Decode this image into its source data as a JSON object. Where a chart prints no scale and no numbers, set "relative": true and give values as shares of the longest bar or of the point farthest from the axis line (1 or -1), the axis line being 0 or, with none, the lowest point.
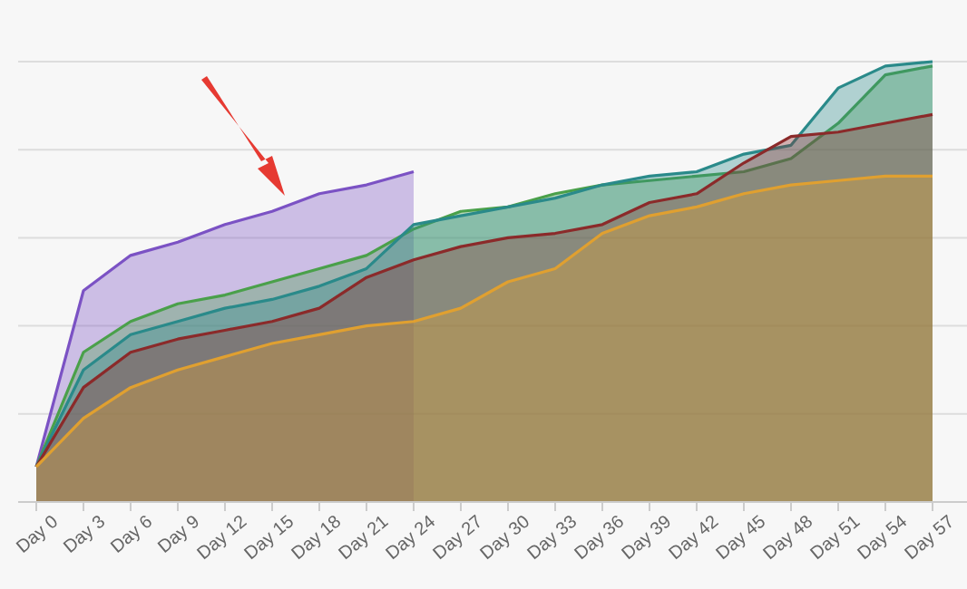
{
  "chart_data": {
    "type": "area",
    "relative": true,
    "grid": true,
    "categories": [
      "Day 0",
      "Day 3",
      "Day 6",
      "Day 9",
      "Day 12",
      "Day 15",
      "Day 18",
      "Day 21",
      "Day 24",
      "Day 27",
      "Day 30",
      "Day 33",
      "Day 36",
      "Day 39",
      "Day 42",
      "Day 45",
      "Day 48",
      "Day 51",
      "Day 54",
      "Day 57"
    ],
    "series": [
      {
        "color": "#7b52c4",
        "values": [
          0.08,
          0.48,
          0.56,
          0.59,
          0.63,
          0.66,
          0.7,
          0.72,
          0.75,
          null,
          null,
          null,
          null,
          null,
          null,
          null,
          null,
          null,
          null,
          null
        ]
      },
      {
        "color": "#4aa04a",
        "values": [
          0.08,
          0.34,
          0.41,
          0.45,
          0.47,
          0.5,
          0.53,
          0.56,
          0.62,
          0.66,
          0.67,
          0.7,
          0.72,
          0.73,
          0.74,
          0.75,
          0.78,
          0.86,
          0.97,
          0.99
        ]
      },
      {
        "color": "#2a8a8a",
        "values": [
          0.08,
          0.3,
          0.38,
          0.41,
          0.44,
          0.46,
          0.49,
          0.53,
          0.63,
          0.65,
          0.67,
          0.69,
          0.72,
          0.74,
          0.75,
          0.79,
          0.81,
          0.94,
          0.99,
          1
        ]
      },
      {
        "color": "#8b2a2a",
        "values": [
          0.08,
          0.26,
          0.34,
          0.37,
          0.39,
          0.41,
          0.44,
          0.51,
          0.55,
          0.58,
          0.6,
          0.61,
          0.63,
          0.68,
          0.7,
          0.77,
          0.83,
          0.84,
          0.86,
          0.88
        ]
      },
      {
        "color": "#e0a030",
        "values": [
          0.08,
          0.19,
          0.26,
          0.3,
          0.33,
          0.36,
          0.38,
          0.4,
          0.41,
          0.44,
          0.5,
          0.53,
          0.61,
          0.65,
          0.67,
          0.7,
          0.72,
          0.73,
          0.74,
          0.74
        ]
      }
    ]
  }
}
